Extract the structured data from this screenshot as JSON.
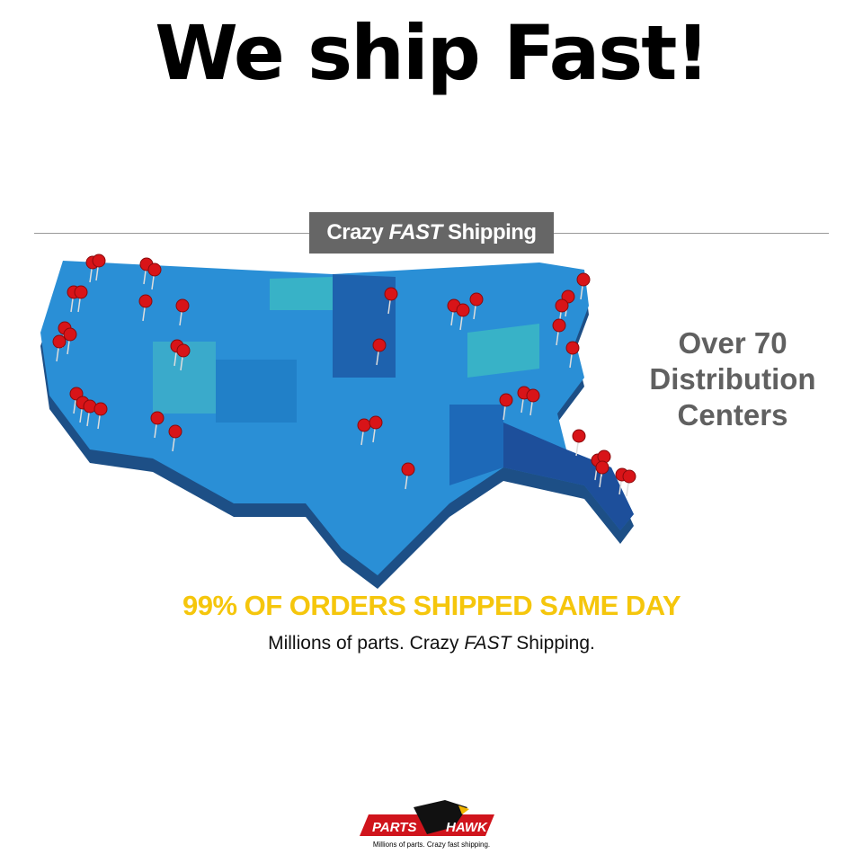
{
  "headline": "We ship Fast!",
  "banner": {
    "pre": "Crazy ",
    "em": "FAST",
    "post": " Shipping"
  },
  "distribution": {
    "line1": "Over 70",
    "line2": "Distribution",
    "line3": "Centers"
  },
  "same_day": "99% OF ORDERS SHIPPED SAME DAY",
  "subline": {
    "pre": "Millions of parts. Crazy ",
    "em": "FAST",
    "post": " Shipping."
  },
  "logo": {
    "left": "PARTS",
    "right": "HAWK",
    "tagline": "Millions of parts. Crazy fast shipping."
  },
  "colors": {
    "map_blue": "#2a8fd6",
    "map_dark": "#1a4f9c",
    "pin": "#d81418",
    "same_day": "#f5c60c",
    "banner": "#666666"
  }
}
